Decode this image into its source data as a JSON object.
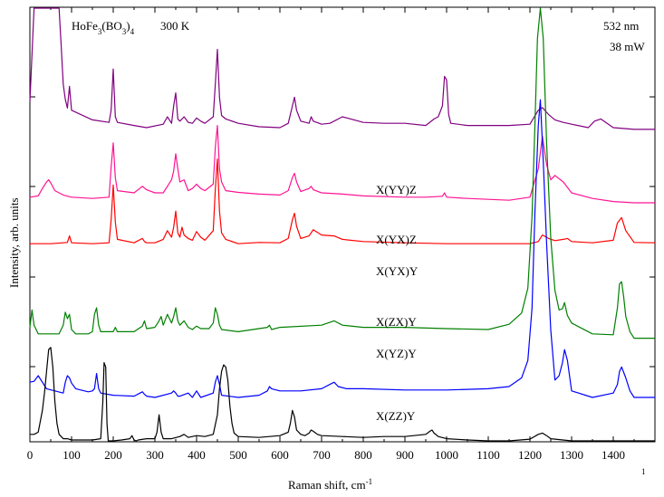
{
  "chart_data": {
    "type": "line",
    "title": "",
    "xlabel": "Raman shift, cm",
    "xlabel_superscript": "-1",
    "ylabel": "Intensity, arb. units",
    "xlim": [
      0,
      1500
    ],
    "x_ticks": [
      0,
      100,
      200,
      300,
      400,
      500,
      600,
      700,
      800,
      900,
      1000,
      1100,
      1200,
      1300,
      1400
    ],
    "y_ticks_labeled": false,
    "grid": false,
    "legend": "none",
    "annotations": {
      "compound_prefix": "HoFe",
      "compound_sub1": "3",
      "compound_mid": "(BO",
      "compound_sub2": "3",
      "compound_suffix": ")",
      "compound_sub3": "4",
      "temperature": "300 K",
      "wavelength": "532 nm",
      "power": "38 mW",
      "corner_mark": "1"
    },
    "series": [
      {
        "name": "X(YY)Z",
        "color": "#800080",
        "x": [
          0,
          10,
          20,
          25,
          35,
          40,
          45,
          50,
          55,
          60,
          65,
          70,
          75,
          80,
          85,
          90,
          95,
          100,
          150,
          190,
          195,
          200,
          205,
          210,
          250,
          280,
          320,
          330,
          340,
          345,
          350,
          355,
          360,
          370,
          380,
          390,
          400,
          410,
          420,
          440,
          445,
          450,
          455,
          460,
          470,
          500,
          550,
          600,
          620,
          630,
          635,
          640,
          650,
          670,
          675,
          680,
          700,
          720,
          750,
          800,
          850,
          900,
          950,
          970,
          980,
          990,
          995,
          1000,
          1005,
          1010,
          1050,
          1100,
          1150,
          1200,
          1220,
          1230,
          1245,
          1260,
          1280,
          1300,
          1340,
          1355,
          1370,
          1400,
          1450,
          1500
        ],
        "y": [
          260,
          600,
          550,
          800,
          1000,
          1000,
          1000,
          1000,
          1000,
          1000,
          840,
          700,
          390,
          300,
          265,
          245,
          295,
          240,
          218,
          212,
          240,
          335,
          225,
          212,
          205,
          200,
          208,
          225,
          210,
          250,
          280,
          220,
          215,
          225,
          212,
          210,
          222,
          215,
          210,
          225,
          300,
          380,
          270,
          228,
          220,
          210,
          202,
          200,
          210,
          250,
          270,
          240,
          215,
          210,
          225,
          215,
          208,
          210,
          225,
          212,
          210,
          210,
          205,
          220,
          225,
          250,
          318,
          310,
          230,
          210,
          205,
          205,
          205,
          208,
          240,
          246,
          230,
          218,
          212,
          208,
          200,
          215,
          220,
          200,
          196,
          196
        ]
      },
      {
        "name": "X(YX)Z",
        "color": "#ff1493",
        "x": [
          0,
          20,
          30,
          40,
          45,
          50,
          60,
          80,
          100,
          150,
          190,
          195,
          200,
          205,
          210,
          250,
          270,
          280,
          300,
          320,
          330,
          340,
          345,
          350,
          355,
          360,
          370,
          380,
          390,
          400,
          410,
          420,
          440,
          445,
          450,
          455,
          460,
          470,
          500,
          550,
          600,
          620,
          630,
          635,
          640,
          650,
          670,
          675,
          680,
          700,
          750,
          800,
          900,
          950,
          990,
          995,
          1000,
          1050,
          1100,
          1150,
          1200,
          1220,
          1230,
          1240,
          1250,
          1260,
          1280,
          1300,
          1350,
          1400,
          1450,
          1500
        ],
        "y": [
          165,
          168,
          185,
          200,
          205,
          198,
          180,
          170,
          165,
          162,
          165,
          235,
          290,
          210,
          180,
          175,
          190,
          182,
          175,
          175,
          190,
          205,
          225,
          265,
          230,
          200,
          205,
          180,
          185,
          195,
          185,
          180,
          195,
          280,
          330,
          230,
          200,
          180,
          176,
          172,
          170,
          180,
          210,
          220,
          200,
          178,
          185,
          190,
          182,
          175,
          172,
          168,
          165,
          165,
          167,
          175,
          165,
          162,
          160,
          158,
          165,
          230,
          305,
          240,
          205,
          215,
          200,
          175,
          162,
          155,
          152,
          152
        ]
      },
      {
        "name": "X(YX)Y",
        "color": "#ff0000",
        "x": [
          0,
          50,
          90,
          95,
          100,
          150,
          190,
          195,
          200,
          205,
          210,
          250,
          270,
          275,
          280,
          300,
          320,
          330,
          340,
          345,
          350,
          355,
          360,
          365,
          370,
          380,
          390,
          400,
          410,
          420,
          440,
          445,
          450,
          455,
          460,
          470,
          500,
          550,
          600,
          620,
          630,
          635,
          640,
          650,
          670,
          680,
          700,
          730,
          750,
          800,
          900,
          1000,
          1100,
          1200,
          1220,
          1230,
          1245,
          1260,
          1280,
          1290,
          1300,
          1350,
          1400,
          1410,
          1420,
          1430,
          1450,
          1500
        ],
        "y": [
          110,
          110,
          113,
          128,
          112,
          110,
          112,
          165,
          245,
          160,
          120,
          112,
          122,
          115,
          112,
          112,
          120,
          140,
          125,
          148,
          185,
          135,
          125,
          148,
          130,
          122,
          118,
          138,
          125,
          118,
          140,
          235,
          305,
          185,
          135,
          120,
          110,
          113,
          112,
          122,
          165,
          180,
          150,
          122,
          128,
          142,
          130,
          128,
          120,
          115,
          112,
          110,
          110,
          110,
          115,
          130,
          122,
          117,
          120,
          122,
          115,
          112,
          118,
          158,
          170,
          140,
          113,
          112
        ]
      },
      {
        "name": "X(ZX)Y",
        "color": "#008000",
        "x": [
          0,
          5,
          10,
          20,
          40,
          70,
          80,
          85,
          90,
          95,
          100,
          110,
          140,
          150,
          155,
          160,
          165,
          170,
          200,
          205,
          210,
          250,
          270,
          275,
          280,
          300,
          310,
          315,
          320,
          330,
          340,
          345,
          350,
          355,
          360,
          370,
          380,
          390,
          400,
          410,
          430,
          440,
          445,
          450,
          455,
          460,
          500,
          570,
          575,
          580,
          600,
          700,
          730,
          750,
          800,
          900,
          1000,
          1100,
          1150,
          1180,
          1195,
          1205,
          1212,
          1218,
          1225,
          1232,
          1240,
          1250,
          1260,
          1270,
          1278,
          1283,
          1290,
          1300,
          1350,
          1400,
          1410,
          1415,
          1420,
          1425,
          1430,
          1440,
          1450,
          1500
        ],
        "y": [
          55,
          95,
          60,
          40,
          40,
          40,
          60,
          90,
          75,
          85,
          50,
          40,
          40,
          45,
          85,
          100,
          60,
          45,
          45,
          55,
          45,
          45,
          58,
          70,
          52,
          55,
          70,
          80,
          60,
          85,
          65,
          80,
          100,
          70,
          60,
          70,
          55,
          50,
          58,
          52,
          52,
          65,
          100,
          85,
          60,
          50,
          45,
          55,
          60,
          50,
          55,
          60,
          70,
          60,
          55,
          55,
          52,
          50,
          62,
          88,
          145,
          310,
          520,
          720,
          800,
          720,
          480,
          260,
          140,
          95,
          98,
          112,
          82,
          65,
          40,
          38,
          100,
          155,
          160,
          125,
          80,
          45,
          30,
          30
        ]
      },
      {
        "name": "X(YZ)Y",
        "color": "#0000ff",
        "x": [
          0,
          10,
          20,
          40,
          60,
          80,
          85,
          90,
          95,
          100,
          110,
          140,
          150,
          155,
          160,
          165,
          170,
          200,
          250,
          270,
          275,
          280,
          300,
          340,
          345,
          350,
          355,
          360,
          380,
          390,
          400,
          410,
          440,
          445,
          450,
          455,
          460,
          500,
          550,
          570,
          575,
          580,
          600,
          650,
          700,
          730,
          740,
          760,
          800,
          900,
          1000,
          1100,
          1150,
          1180,
          1195,
          1205,
          1212,
          1220,
          1225,
          1232,
          1240,
          1250,
          1260,
          1270,
          1278,
          1283,
          1290,
          1300,
          1350,
          1400,
          1410,
          1415,
          1420,
          1430,
          1440,
          1450,
          1500
        ],
        "y": [
          10,
          12,
          25,
          -5,
          -10,
          -15,
          10,
          25,
          20,
          8,
          -5,
          -12,
          -10,
          -5,
          30,
          -5,
          -15,
          -20,
          -22,
          -12,
          -18,
          -22,
          -25,
          -15,
          -10,
          -15,
          -22,
          -22,
          -15,
          -25,
          -10,
          -25,
          -15,
          10,
          25,
          5,
          -20,
          -25,
          -20,
          -10,
          0,
          -5,
          -10,
          -10,
          -5,
          10,
          0,
          -5,
          -5,
          -8,
          -8,
          -5,
          0,
          20,
          60,
          180,
          400,
          600,
          660,
          520,
          330,
          130,
          15,
          25,
          55,
          85,
          60,
          -10,
          -25,
          -15,
          5,
          35,
          45,
          20,
          -10,
          -25,
          -25
        ]
      },
      {
        "name": "X(ZZ)Y",
        "color": "#000000",
        "x": [
          0,
          10,
          20,
          30,
          35,
          40,
          45,
          50,
          55,
          60,
          65,
          70,
          80,
          90,
          100,
          150,
          170,
          175,
          178,
          182,
          185,
          188,
          195,
          200,
          220,
          240,
          245,
          250,
          255,
          260,
          280,
          300,
          305,
          310,
          315,
          320,
          340,
          360,
          370,
          380,
          400,
          420,
          440,
          450,
          455,
          460,
          465,
          470,
          475,
          480,
          485,
          490,
          500,
          550,
          600,
          620,
          625,
          630,
          635,
          640,
          650,
          660,
          670,
          675,
          680,
          690,
          700,
          750,
          800,
          850,
          900,
          950,
          960,
          965,
          970,
          980,
          1000,
          1050,
          1100,
          1150,
          1200,
          1220,
          1230,
          1240,
          1250,
          1300,
          1350,
          1400,
          1450,
          1500
        ],
        "y": [
          -175,
          -175,
          -170,
          -120,
          -80,
          -30,
          20,
          25,
          -20,
          -100,
          -150,
          -175,
          -185,
          -185,
          -188,
          -188,
          -185,
          -100,
          -10,
          -20,
          -150,
          -190,
          -192,
          -192,
          -188,
          -185,
          -178,
          -188,
          -190,
          -188,
          -185,
          -185,
          -170,
          -130,
          -170,
          -185,
          -185,
          -180,
          -175,
          -182,
          -178,
          -180,
          -175,
          -130,
          -70,
          -30,
          -15,
          -20,
          -50,
          -110,
          -150,
          -172,
          -180,
          -182,
          -178,
          -170,
          -150,
          -120,
          -135,
          -165,
          -175,
          -178,
          -172,
          -165,
          -168,
          -175,
          -178,
          -180,
          -182,
          -180,
          -180,
          -175,
          -168,
          -165,
          -172,
          -180,
          -185,
          -188,
          -190,
          -190,
          -186,
          -175,
          -172,
          -178,
          -185,
          -190,
          -190,
          -190,
          -190,
          -190
        ]
      }
    ]
  }
}
